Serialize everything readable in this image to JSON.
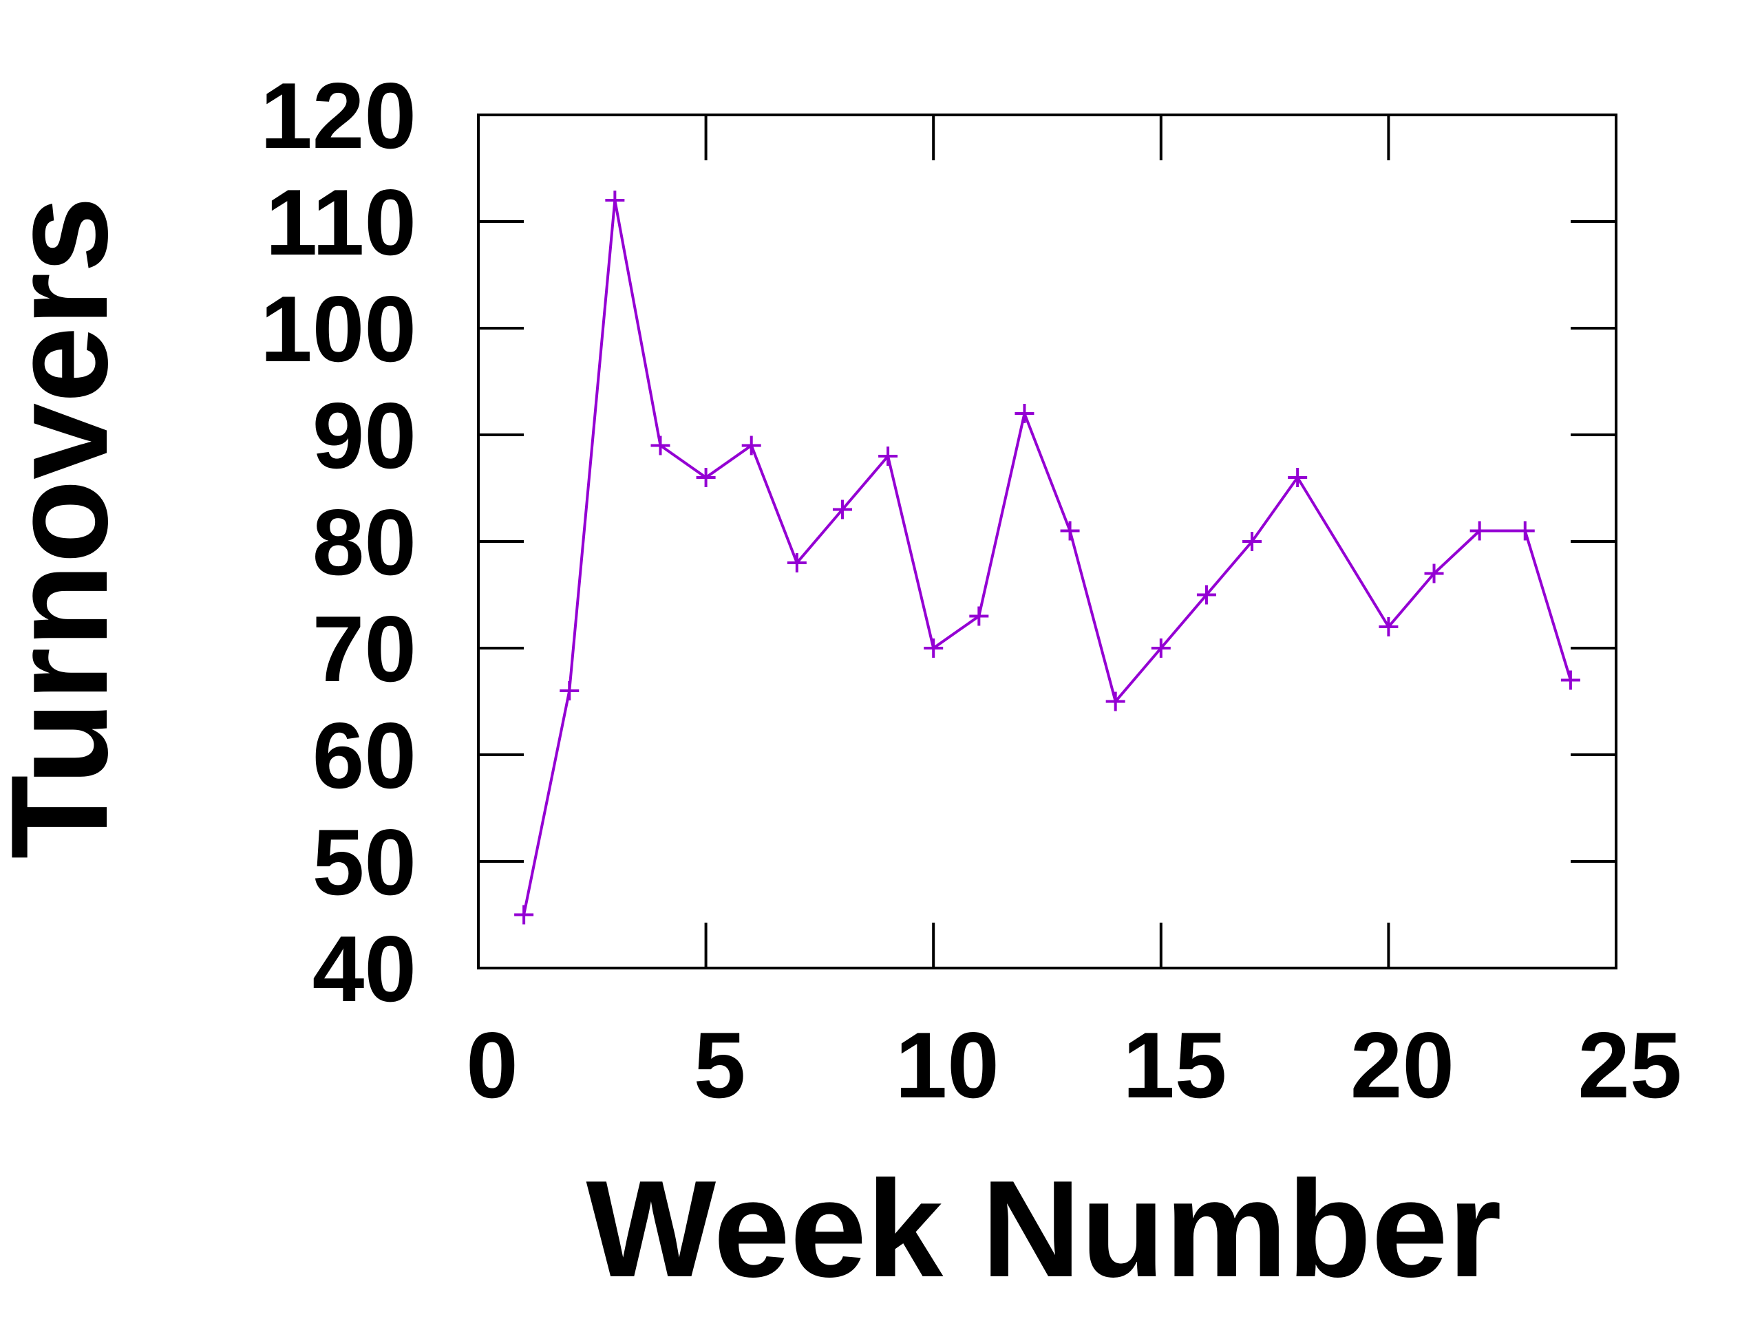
{
  "chart_data": {
    "type": "line",
    "xlabel": "Week Number",
    "ylabel": "Turnovers",
    "xlim": [
      0,
      25
    ],
    "ylim": [
      40,
      120
    ],
    "xticks": [
      0,
      5,
      10,
      15,
      20,
      25
    ],
    "yticks": [
      40,
      50,
      60,
      70,
      80,
      90,
      100,
      110,
      120
    ],
    "grid": false,
    "legend": "none",
    "series": [
      {
        "color": "#9400D3",
        "marker": "plus",
        "x": [
          1,
          2,
          3,
          4,
          5,
          6,
          7,
          8,
          9,
          10,
          11,
          12,
          13,
          14,
          15,
          16,
          17,
          18,
          20,
          21,
          22,
          23,
          24
        ],
        "y": [
          45,
          66,
          112,
          89,
          86,
          89,
          78,
          83,
          88,
          70,
          73,
          92,
          81,
          65,
          70,
          75,
          80,
          86,
          72,
          77,
          81,
          81,
          67
        ]
      }
    ]
  }
}
